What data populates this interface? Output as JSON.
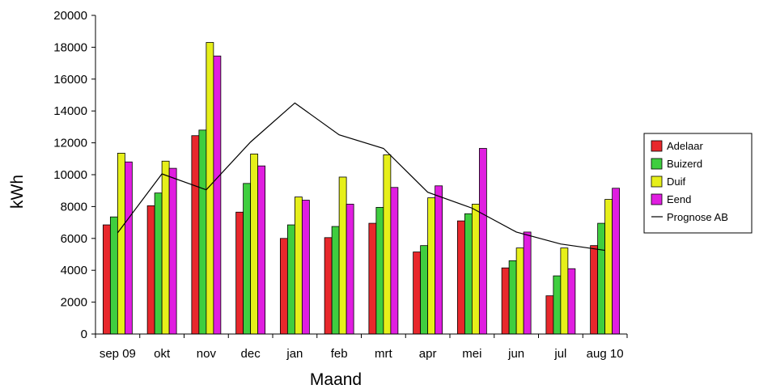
{
  "chart_data": {
    "type": "bar",
    "xlabel": "Maand",
    "ylabel": "kWh",
    "ylim": [
      0,
      20000
    ],
    "yticks": [
      0,
      2000,
      4000,
      6000,
      8000,
      10000,
      12000,
      14000,
      16000,
      18000,
      20000
    ],
    "categories": [
      "sep 09",
      "okt",
      "nov",
      "dec",
      "jan",
      "feb",
      "mrt",
      "apr",
      "mei",
      "jun",
      "jul",
      "aug 10"
    ],
    "series": [
      {
        "name": "Adelaar",
        "kind": "bar",
        "color": "#e8282c",
        "values": [
          6850,
          8050,
          12450,
          7650,
          6000,
          6050,
          6950,
          5150,
          7100,
          4150,
          2400,
          5550
        ]
      },
      {
        "name": "Buizerd",
        "kind": "bar",
        "color": "#3fce3f",
        "values": [
          7350,
          8850,
          12800,
          9450,
          6850,
          6750,
          7950,
          5550,
          7550,
          4600,
          3650,
          6950
        ]
      },
      {
        "name": "Duif",
        "kind": "bar",
        "color": "#e6ef1a",
        "values": [
          11350,
          10850,
          18300,
          11300,
          8600,
          9850,
          11250,
          8550,
          8150,
          5400,
          5400,
          8450
        ]
      },
      {
        "name": "Eend",
        "kind": "bar",
        "color": "#e01ee0",
        "values": [
          10800,
          10400,
          17450,
          10550,
          8400,
          8150,
          9200,
          9300,
          11650,
          6400,
          4100,
          9150
        ]
      },
      {
        "name": "Prognose AB",
        "kind": "line",
        "color": "#000000",
        "values": [
          6350,
          10050,
          9050,
          12050,
          14500,
          12500,
          11650,
          8900,
          7900,
          6400,
          5650,
          5250
        ]
      }
    ],
    "legend_position": "right",
    "grid": false
  }
}
